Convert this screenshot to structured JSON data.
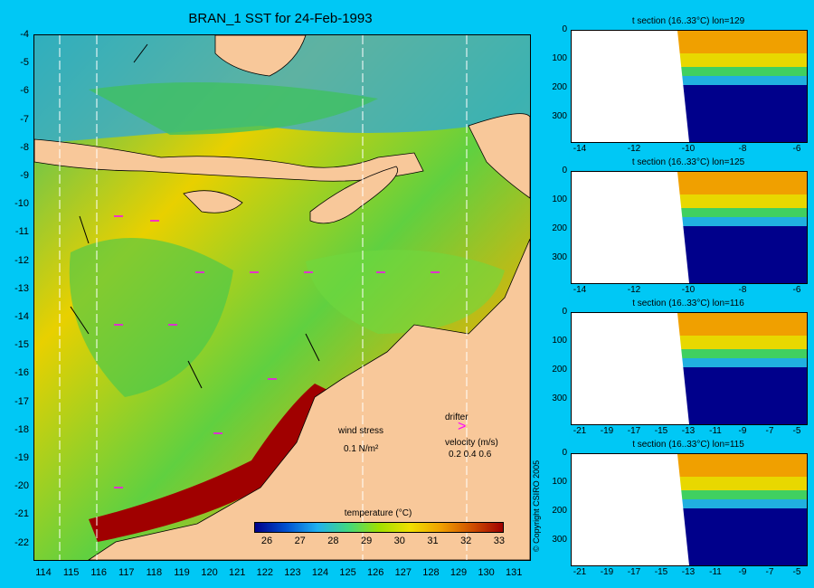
{
  "title": "BRAN_1 SST for 24-Feb-1993",
  "map": {
    "lat_ticks": [
      "-4",
      "-5",
      "-6",
      "-7",
      "-8",
      "-9",
      "-10",
      "-11",
      "-12",
      "-13",
      "-14",
      "-15",
      "-16",
      "-17",
      "-18",
      "-19",
      "-20",
      "-21",
      "-22"
    ],
    "lon_ticks": [
      "114",
      "115",
      "116",
      "117",
      "118",
      "119",
      "120",
      "121",
      "122",
      "123",
      "124",
      "125",
      "126",
      "127",
      "128",
      "129",
      "130",
      "131"
    ],
    "colors": {
      "land": "#f8c89a",
      "ocean_warm": "#f0a000",
      "ocean_mid": "#50d050",
      "ocean_cool": "#30b8e0",
      "hot": "#a00000",
      "drifter": "#ff00ff",
      "section_line": "#ffffff"
    }
  },
  "legend": {
    "wind_stress_label": "wind stress",
    "wind_stress_value": "0.1 N/m²",
    "drifter_label": "drifter",
    "velocity_label": "velocity (m/s)",
    "velocity_scale": "0.2 0.4 0.6"
  },
  "colorbar": {
    "title": "temperature (°C)",
    "ticks": [
      "26",
      "27",
      "28",
      "29",
      "30",
      "31",
      "32",
      "33"
    ],
    "colors": [
      "#00008b",
      "#0050d0",
      "#20b0f0",
      "#40d880",
      "#a0e000",
      "#f0e000",
      "#f0a000",
      "#d05000",
      "#a00000"
    ]
  },
  "sections": [
    {
      "title": "t section (16..33°C) lon=129",
      "y_ticks": [
        "0",
        "100",
        "200",
        "300"
      ],
      "x_ticks": [
        "-14",
        "-12",
        "-10",
        "-8",
        "-6"
      ]
    },
    {
      "title": "t section (16..33°C) lon=125",
      "y_ticks": [
        "0",
        "100",
        "200",
        "300"
      ],
      "x_ticks": [
        "-14",
        "-12",
        "-10",
        "-8",
        "-6"
      ]
    },
    {
      "title": "t section (16..33°C) lon=116",
      "y_ticks": [
        "0",
        "100",
        "200",
        "300"
      ],
      "x_ticks": [
        "-21",
        "-19",
        "-17",
        "-15",
        "-13",
        "-11",
        "-9",
        "-7",
        "-5"
      ]
    },
    {
      "title": "t section (16..33°C) lon=115",
      "y_ticks": [
        "0",
        "100",
        "200",
        "300"
      ],
      "x_ticks": [
        "-21",
        "-19",
        "-17",
        "-15",
        "-13",
        "-11",
        "-9",
        "-7",
        "-5"
      ]
    }
  ],
  "copyright": "© Copyright CSIRO 2005"
}
